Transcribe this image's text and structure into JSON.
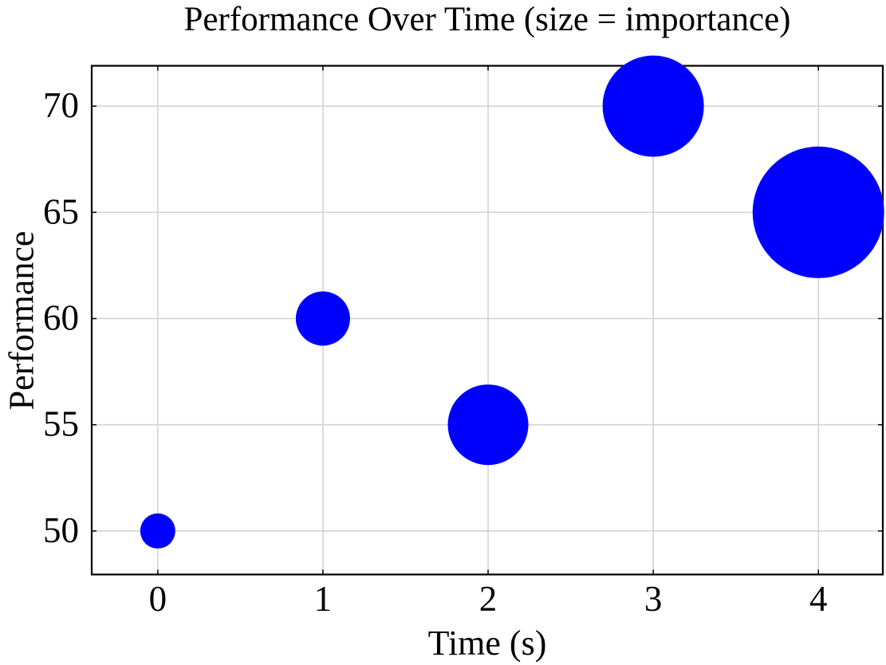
{
  "chart_data": {
    "type": "scatter",
    "variant": "bubble",
    "title": "Performance Over Time (size = importance)",
    "xlabel": "Time (s)",
    "ylabel": "Performance",
    "points": [
      {
        "x": 0,
        "y": 50,
        "radius_px": 22
      },
      {
        "x": 1,
        "y": 60,
        "radius_px": 34
      },
      {
        "x": 2,
        "y": 55,
        "radius_px": 50.5
      },
      {
        "x": 3,
        "y": 70,
        "radius_px": 63.5
      },
      {
        "x": 4,
        "y": 65,
        "radius_px": 82.5
      }
    ],
    "xticks": [
      0,
      1,
      2,
      3,
      4
    ],
    "xtick_labels": [
      "0",
      "1",
      "2",
      "3",
      "4"
    ],
    "yticks": [
      50,
      55,
      60,
      65,
      70
    ],
    "ytick_labels": [
      "50",
      "55",
      "60",
      "65",
      "70"
    ],
    "xlim": [
      -0.4,
      4.39
    ],
    "ylim": [
      47.95,
      71.9
    ],
    "grid": true,
    "legend_position": "none",
    "colors": {
      "marker": "#0000ff",
      "grid": "#d3d3d3",
      "frame": "#000000",
      "tick": "#000000",
      "text": "#000000",
      "background": "#ffffff"
    }
  }
}
